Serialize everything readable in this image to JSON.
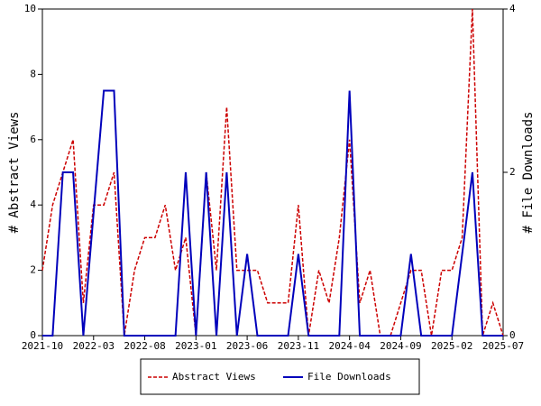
{
  "chart_data": {
    "type": "line",
    "categories": [
      "2021-10",
      null,
      null,
      null,
      null,
      "2022-03",
      null,
      null,
      null,
      null,
      "2022-08",
      null,
      null,
      null,
      null,
      "2023-01",
      null,
      null,
      null,
      null,
      "2023-06",
      null,
      null,
      null,
      null,
      "2023-11",
      null,
      null,
      null,
      null,
      "2024-04",
      null,
      null,
      null,
      null,
      "2024-09",
      null,
      null,
      null,
      null,
      "2025-02",
      null,
      null,
      null,
      null,
      "2025-07"
    ],
    "series": [
      {
        "name": "Abstract Views",
        "color": "#cc0000",
        "dash": true,
        "values": [
          2,
          4,
          5,
          6,
          1,
          4,
          4,
          5,
          0,
          2,
          3,
          3,
          4,
          2,
          3,
          0,
          5,
          2,
          7,
          2,
          2,
          2,
          1,
          1,
          1,
          4,
          0,
          2,
          1,
          3,
          6,
          1,
          2,
          0,
          0,
          1,
          2,
          2,
          0,
          2,
          2,
          3,
          10,
          0,
          1,
          0
        ]
      },
      {
        "name": "File Downloads",
        "color": "#0000bb",
        "axis": "y2",
        "values": [
          0,
          0,
          2,
          2,
          0,
          1.5,
          3,
          3,
          0,
          0,
          0,
          0,
          0,
          0,
          2,
          0,
          2,
          0,
          2,
          0,
          1,
          0,
          0,
          0,
          0,
          1,
          0,
          0,
          0,
          0,
          3,
          0,
          0,
          0,
          0,
          0,
          1,
          0,
          0,
          0,
          0,
          1,
          2,
          0,
          0,
          0
        ]
      }
    ],
    "ylabel": "# Abstract Views",
    "y2label": "# File Downloads",
    "ylim": [
      0,
      10
    ],
    "yticks": [
      0,
      2,
      4,
      6,
      8,
      10
    ],
    "y2lim": [
      0,
      4
    ],
    "y2ticks": [
      0,
      2,
      4
    ],
    "legend": "bottom"
  }
}
